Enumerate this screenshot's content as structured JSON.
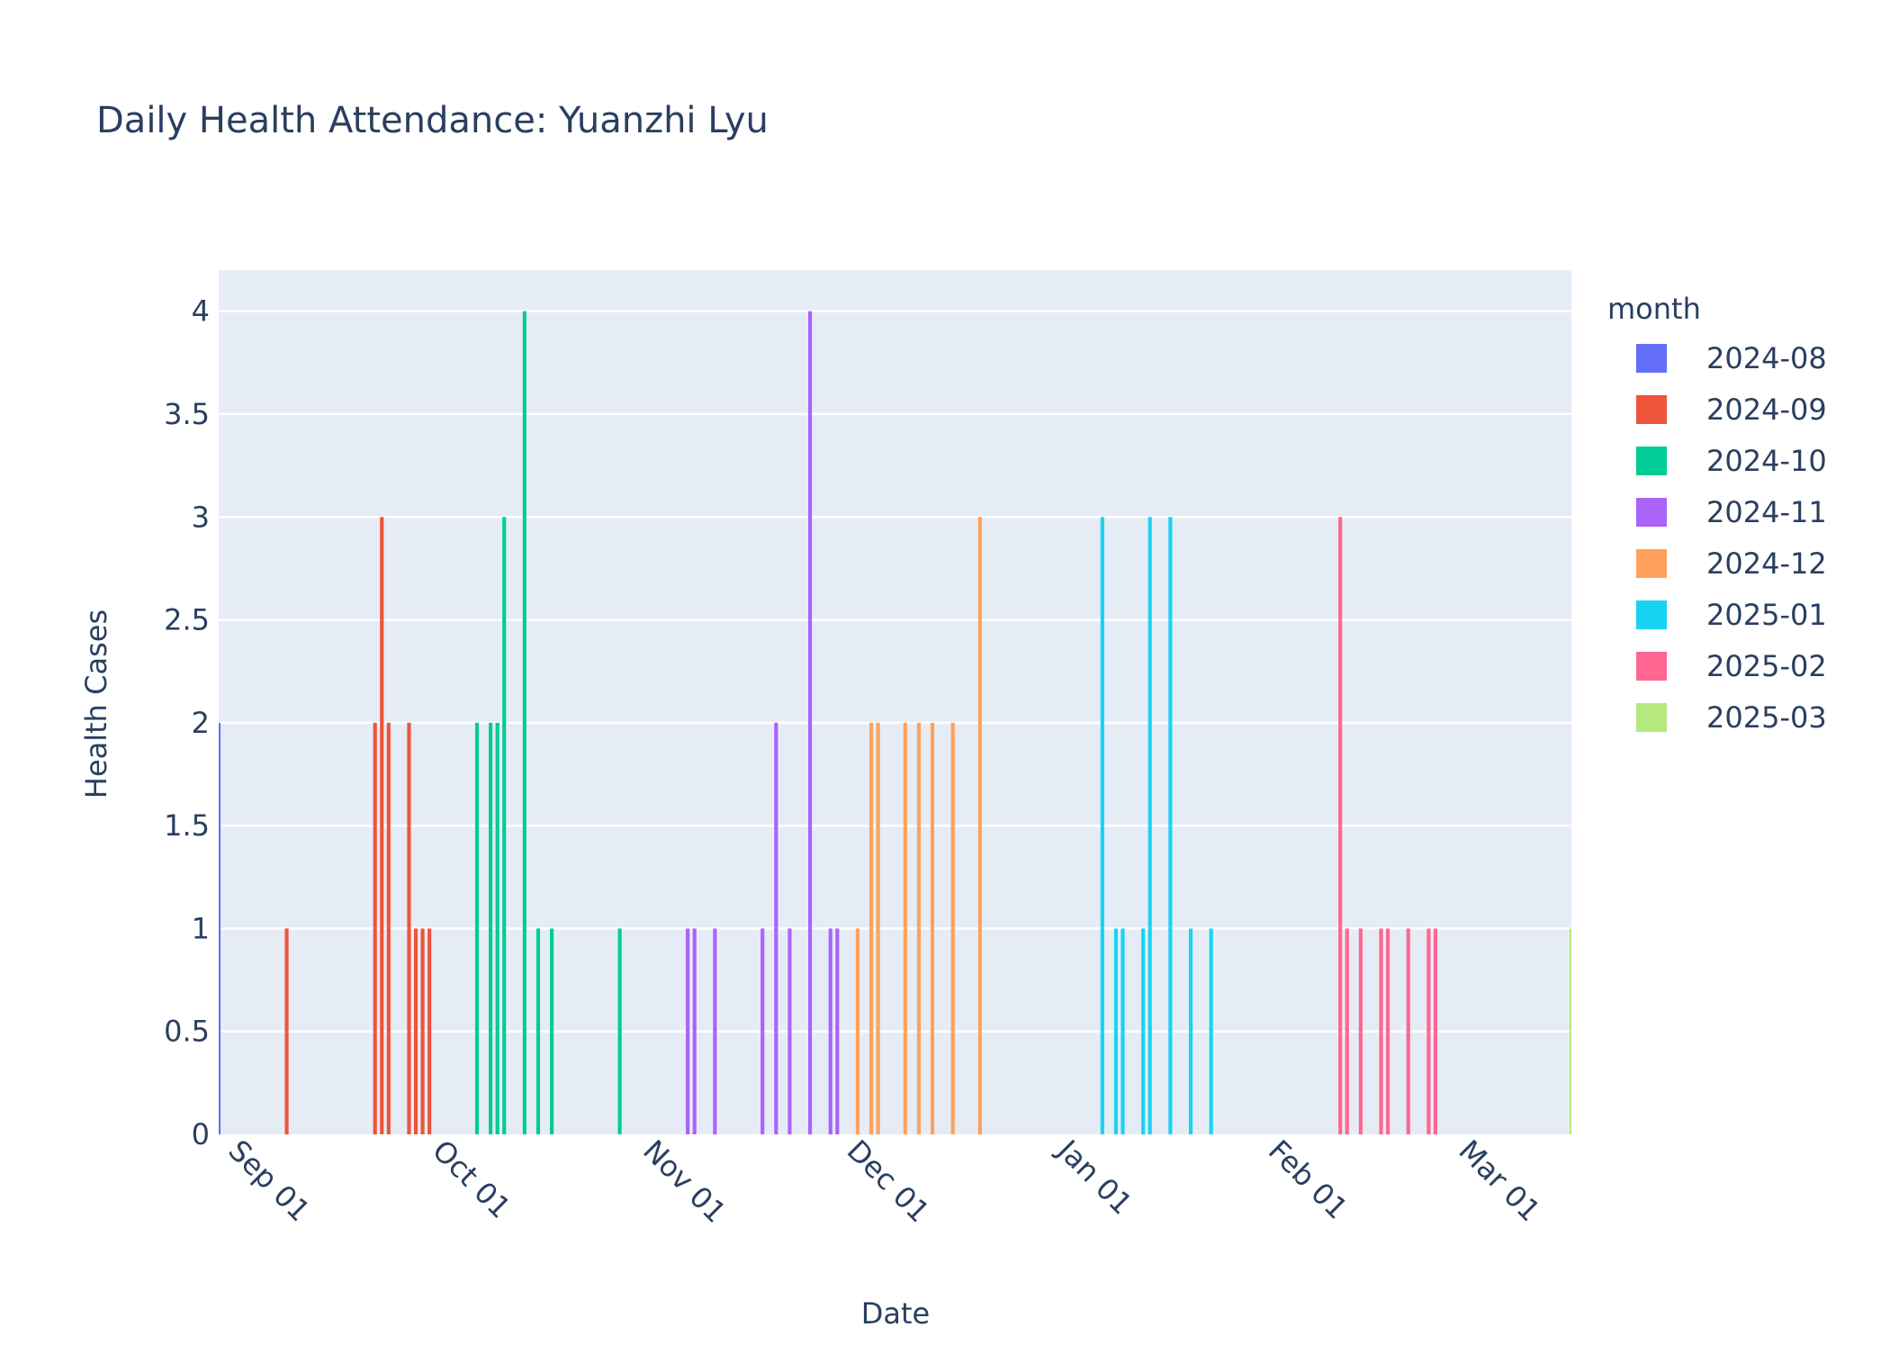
{
  "chart_data": {
    "type": "bar",
    "title": "Daily Health Attendance: Yuanzhi Lyu",
    "xlabel": "Date",
    "ylabel": "Health Cases",
    "x_axis_type": "date",
    "x_range": [
      "2024-08-30",
      "2025-03-17"
    ],
    "ylim": [
      0,
      4.2
    ],
    "y_ticks": [
      0,
      0.5,
      1,
      1.5,
      2,
      2.5,
      3,
      3.5,
      4
    ],
    "y_tick_labels": [
      "0",
      "0.5",
      "1",
      "1.5",
      "2",
      "2.5",
      "3",
      "3.5",
      "4"
    ],
    "x_ticks": [
      "2024-09-01",
      "2024-10-01",
      "2024-11-01",
      "2024-12-01",
      "2025-01-01",
      "2025-02-01",
      "2025-03-01"
    ],
    "x_tick_labels": [
      "Sep 01",
      "Oct 01",
      "Nov 01",
      "Dec 01",
      "Jan 01",
      "Feb 01",
      "Mar 01"
    ],
    "grid": true,
    "legend": {
      "title": "month",
      "placement": "right"
    },
    "series": [
      {
        "name": "2024-08",
        "color": "#636efa",
        "points": [
          [
            "2024-08-30",
            2
          ]
        ]
      },
      {
        "name": "2024-09",
        "color": "#EF553B",
        "points": [
          [
            "2024-09-09",
            1
          ],
          [
            "2024-09-22",
            2
          ],
          [
            "2024-09-23",
            3
          ],
          [
            "2024-09-24",
            2
          ],
          [
            "2024-09-27",
            2
          ],
          [
            "2024-09-28",
            1
          ],
          [
            "2024-09-29",
            1
          ],
          [
            "2024-09-30",
            1
          ]
        ]
      },
      {
        "name": "2024-10",
        "color": "#00cc96",
        "points": [
          [
            "2024-10-07",
            2
          ],
          [
            "2024-10-09",
            2
          ],
          [
            "2024-10-10",
            2
          ],
          [
            "2024-10-11",
            3
          ],
          [
            "2024-10-14",
            4
          ],
          [
            "2024-10-16",
            1
          ],
          [
            "2024-10-18",
            1
          ],
          [
            "2024-10-28",
            1
          ]
        ]
      },
      {
        "name": "2024-11",
        "color": "#ab63fa",
        "points": [
          [
            "2024-11-07",
            1
          ],
          [
            "2024-11-08",
            1
          ],
          [
            "2024-11-11",
            1
          ],
          [
            "2024-11-18",
            1
          ],
          [
            "2024-11-20",
            2
          ],
          [
            "2024-11-22",
            1
          ],
          [
            "2024-11-25",
            4
          ],
          [
            "2024-11-28",
            1
          ],
          [
            "2024-11-29",
            1
          ]
        ]
      },
      {
        "name": "2024-12",
        "color": "#FFA15A",
        "points": [
          [
            "2024-12-02",
            1
          ],
          [
            "2024-12-04",
            2
          ],
          [
            "2024-12-05",
            2
          ],
          [
            "2024-12-09",
            2
          ],
          [
            "2024-12-11",
            2
          ],
          [
            "2024-12-13",
            2
          ],
          [
            "2024-12-16",
            2
          ],
          [
            "2024-12-20",
            3
          ]
        ]
      },
      {
        "name": "2025-01",
        "color": "#19d3f3",
        "points": [
          [
            "2025-01-07",
            3
          ],
          [
            "2025-01-09",
            1
          ],
          [
            "2025-01-10",
            1
          ],
          [
            "2025-01-13",
            1
          ],
          [
            "2025-01-14",
            3
          ],
          [
            "2025-01-17",
            3
          ],
          [
            "2025-01-20",
            1
          ],
          [
            "2025-01-23",
            1
          ]
        ]
      },
      {
        "name": "2025-02",
        "color": "#FF6692",
        "points": [
          [
            "2025-02-11",
            3
          ],
          [
            "2025-02-12",
            1
          ],
          [
            "2025-02-14",
            1
          ],
          [
            "2025-02-17",
            1
          ],
          [
            "2025-02-18",
            1
          ],
          [
            "2025-02-21",
            1
          ],
          [
            "2025-02-24",
            1
          ],
          [
            "2025-02-25",
            1
          ]
        ]
      },
      {
        "name": "2025-03",
        "color": "#B6E880",
        "points": [
          [
            "2025-03-17",
            1
          ]
        ]
      }
    ]
  }
}
